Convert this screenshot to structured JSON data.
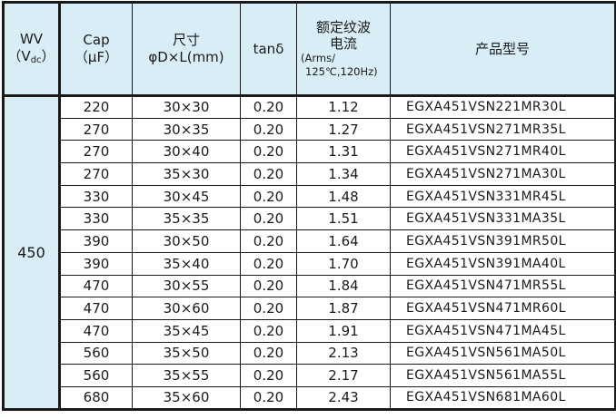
{
  "table": {
    "header": {
      "wv_line1": "WV",
      "wv_paren_open": "（V",
      "wv_sub": "dc",
      "wv_paren_close": "）",
      "cap_line1": "Cap",
      "cap_line2": "（μF）",
      "size_line1": "尺寸",
      "size_line2": "φD×L(mm)",
      "tan_delta": "tanδ",
      "ripple_line1": "额定纹波",
      "ripple_line2": "电流",
      "ripple_line3": "(Arms/",
      "ripple_line4": "125℃,120Hz)",
      "model": "产品型号"
    },
    "wv_value": "450",
    "rows": [
      {
        "cap": "220",
        "size": "30×30",
        "tan_delta": "0.20",
        "ripple": "1.12",
        "model": "EGXA451VSN221MR30L"
      },
      {
        "cap": "270",
        "size": "30×35",
        "tan_delta": "0.20",
        "ripple": "1.27",
        "model": "EGXA451VSN271MR35L"
      },
      {
        "cap": "270",
        "size": "30×40",
        "tan_delta": "0.20",
        "ripple": "1.31",
        "model": "EGXA451VSN271MR40L"
      },
      {
        "cap": "270",
        "size": "35×30",
        "tan_delta": "0.20",
        "ripple": "1.34",
        "model": "EGXA451VSN271MA30L"
      },
      {
        "cap": "330",
        "size": "30×45",
        "tan_delta": "0.20",
        "ripple": "1.48",
        "model": "EGXA451VSN331MR45L"
      },
      {
        "cap": "330",
        "size": "35×35",
        "tan_delta": "0.20",
        "ripple": "1.51",
        "model": "EGXA451VSN331MA35L"
      },
      {
        "cap": "390",
        "size": "30×50",
        "tan_delta": "0.20",
        "ripple": "1.64",
        "model": "EGXA451VSN391MR50L"
      },
      {
        "cap": "390",
        "size": "35×40",
        "tan_delta": "0.20",
        "ripple": "1.70",
        "model": "EGXA451VSN391MA40L"
      },
      {
        "cap": "470",
        "size": "30×55",
        "tan_delta": "0.20",
        "ripple": "1.84",
        "model": "EGXA451VSN471MR55L"
      },
      {
        "cap": "470",
        "size": "30×60",
        "tan_delta": "0.20",
        "ripple": "1.87",
        "model": "EGXA451VSN471MR60L"
      },
      {
        "cap": "470",
        "size": "35×45",
        "tan_delta": "0.20",
        "ripple": "1.91",
        "model": "EGXA451VSN471MA45L"
      },
      {
        "cap": "560",
        "size": "35×50",
        "tan_delta": "0.20",
        "ripple": "2.13",
        "model": "EGXA451VSN561MA50L"
      },
      {
        "cap": "560",
        "size": "35×55",
        "tan_delta": "0.20",
        "ripple": "2.17",
        "model": "EGXA451VSN561MA55L"
      },
      {
        "cap": "680",
        "size": "35×60",
        "tan_delta": "0.20",
        "ripple": "2.43",
        "model": "EGXA451VSN681MA60L"
      }
    ]
  },
  "colors": {
    "header_bg": "#d9edf6",
    "border": "#1a1a1a",
    "text": "#1a1a1a"
  }
}
